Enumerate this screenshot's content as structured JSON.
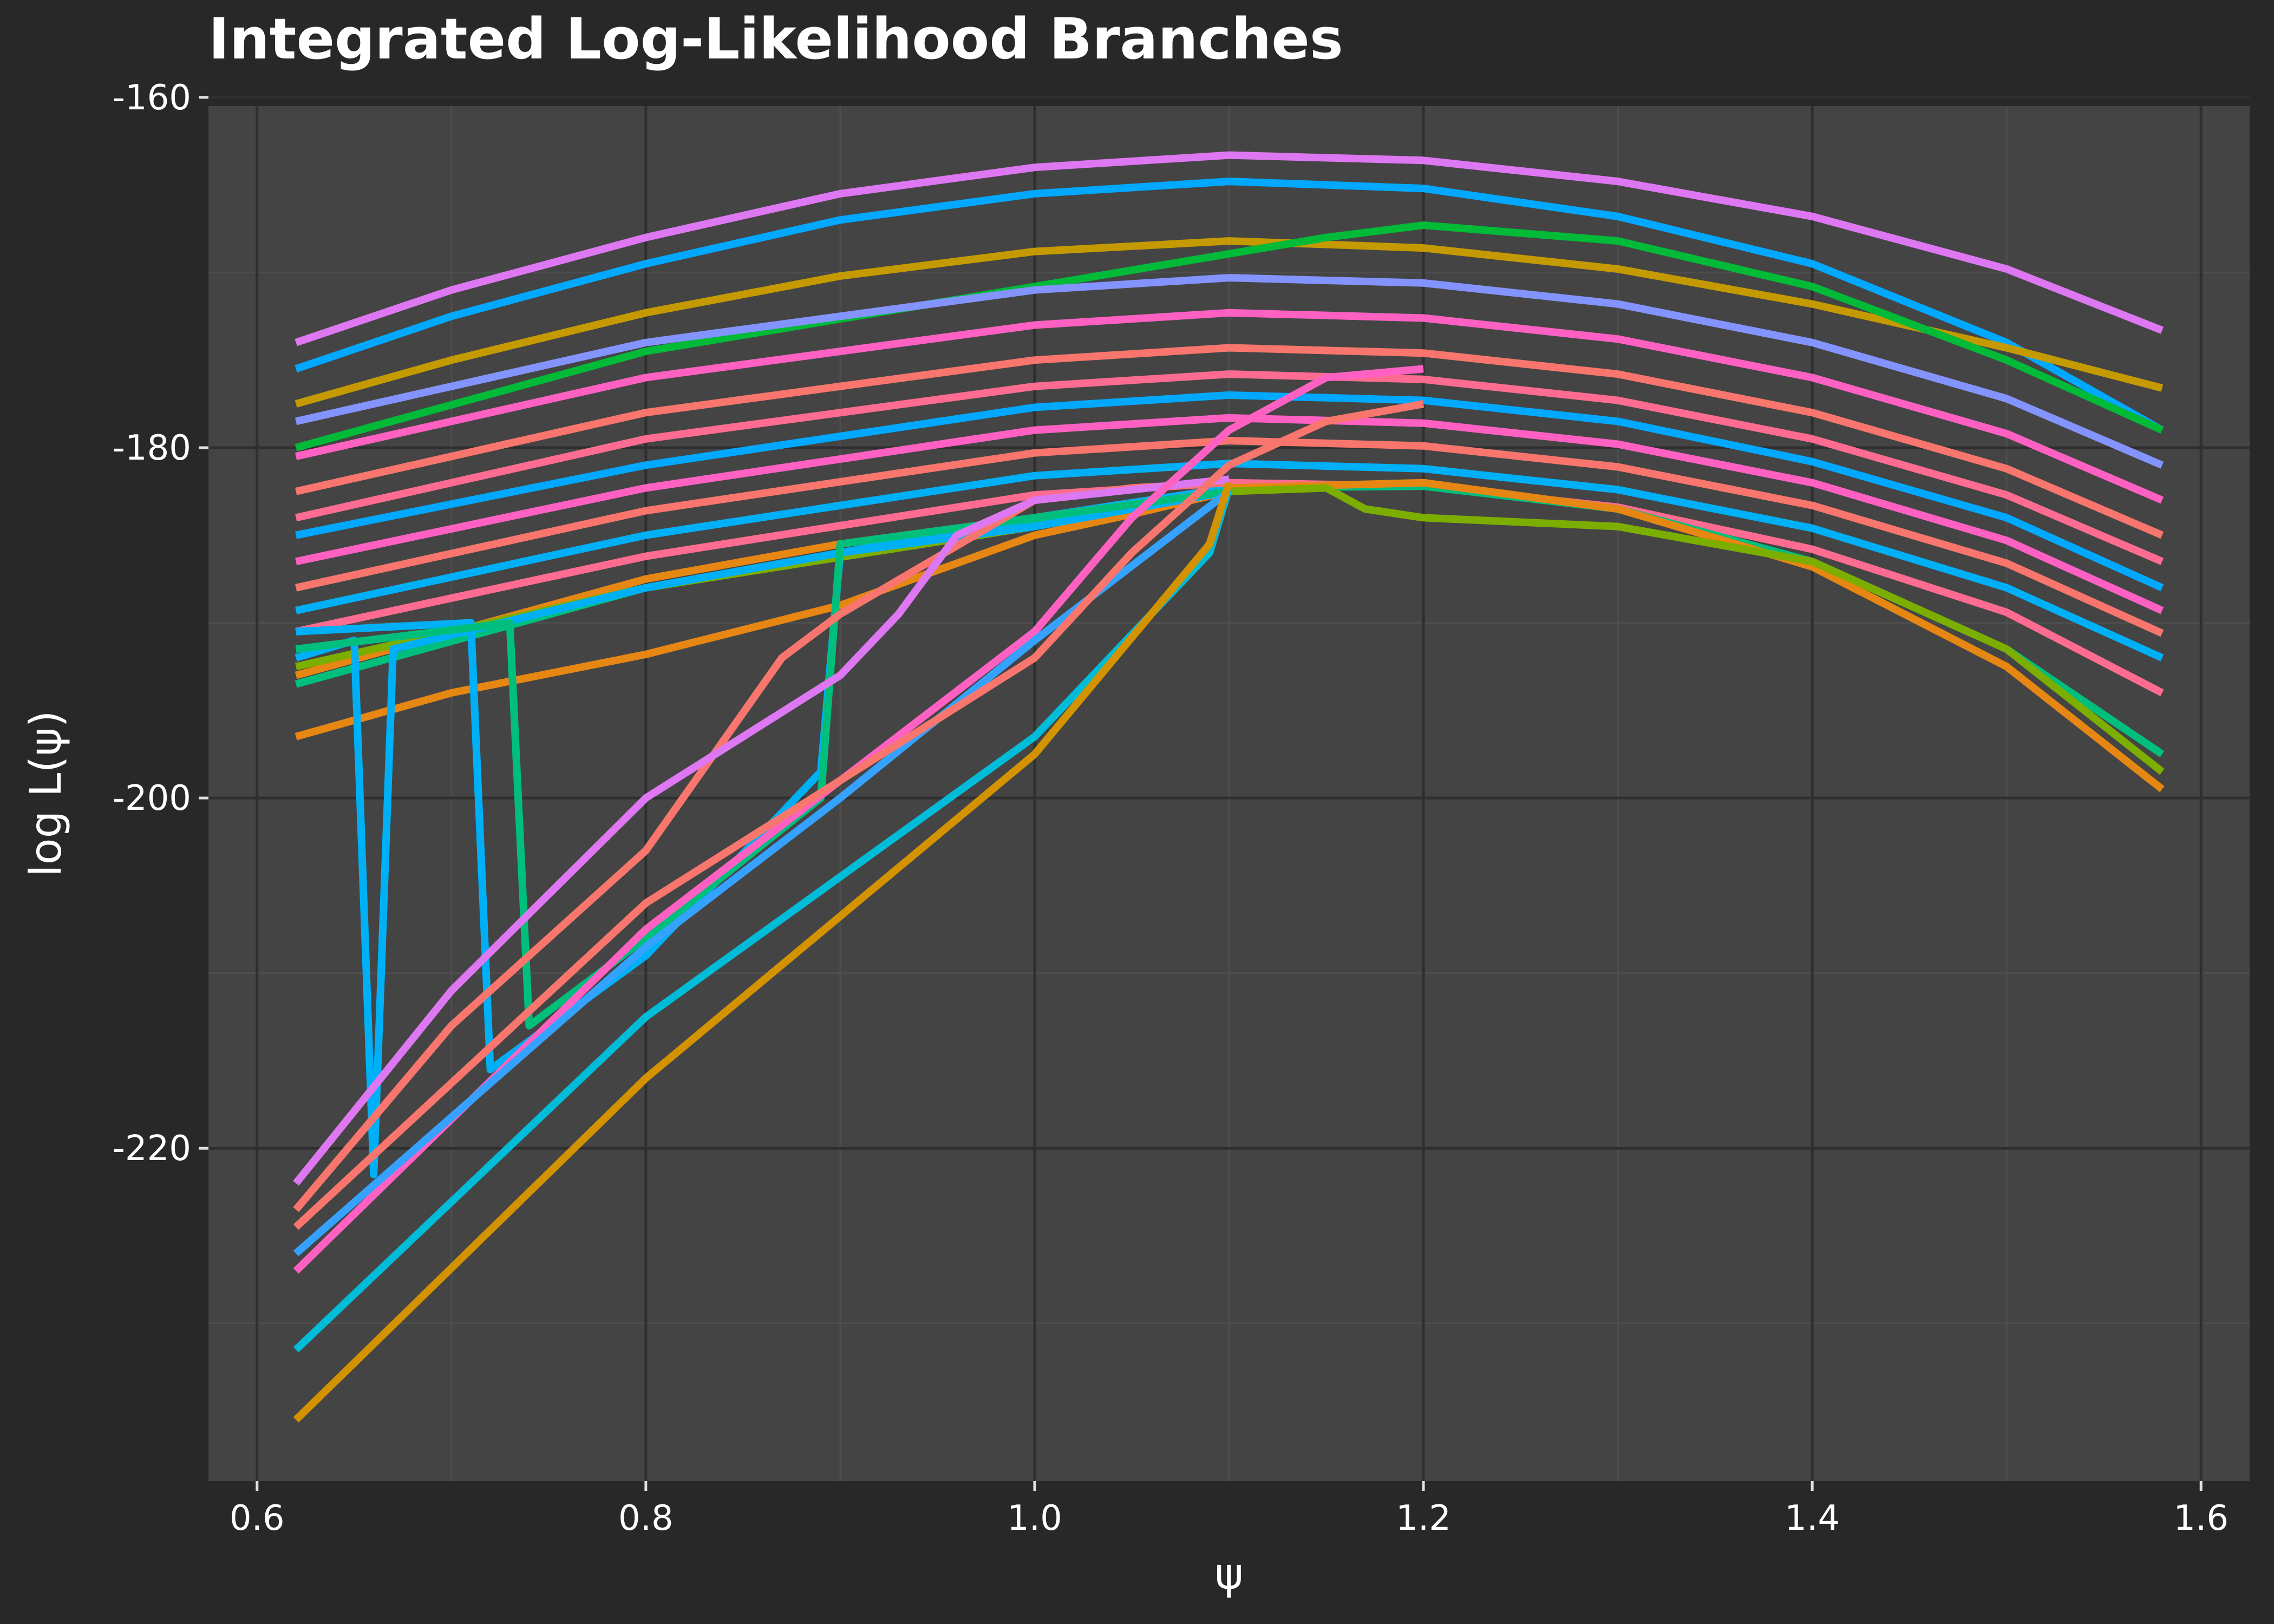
{
  "chart_data": {
    "type": "line",
    "title": "Integrated Log-Likelihood Branches",
    "xlabel": "ψ",
    "ylabel": "log L(ψ)",
    "xlim": [
      0.575,
      1.625
    ],
    "ylim": [
      -239,
      -160.5
    ],
    "x_ticks": [
      0.6,
      0.8,
      1.0,
      1.2,
      1.4,
      1.6
    ],
    "x_tick_labels": [
      "0.6",
      "0.8",
      "1.0",
      "1.2",
      "1.4",
      "1.6"
    ],
    "y_ticks": [
      -160,
      -180,
      -200,
      -220
    ],
    "y_tick_labels": [
      "-160",
      "-180",
      "-200",
      "-220"
    ],
    "grid": true,
    "legend": "none",
    "colors": {
      "background": "#282828",
      "panel": "#444444",
      "grid_major": "#2f2f2f",
      "grid_minor": "#4e4e4e",
      "text": "#ffffff"
    },
    "series": [
      {
        "color": "#DE77F2",
        "x": [
          0.62,
          0.7,
          0.8,
          0.9,
          1.0,
          1.1,
          1.2,
          1.3,
          1.4,
          1.5,
          1.58
        ],
        "y": [
          -174,
          -171,
          -168,
          -165.5,
          -164,
          -163.3,
          -163.6,
          -164.8,
          -166.8,
          -169.8,
          -173.3
        ]
      },
      {
        "color": "#00A9FF",
        "x": [
          0.62,
          0.7,
          0.8,
          0.9,
          1.0,
          1.1,
          1.2,
          1.3,
          1.4,
          1.5,
          1.58
        ],
        "y": [
          -175.5,
          -172.5,
          -169.5,
          -167,
          -165.5,
          -164.8,
          -165.2,
          -166.8,
          -169.5,
          -174,
          -179
        ]
      },
      {
        "color": "#C49A00",
        "x": [
          0.62,
          0.7,
          0.8,
          0.9,
          1.0,
          1.1,
          1.2,
          1.3,
          1.4,
          1.5,
          1.58
        ],
        "y": [
          -177.5,
          -175,
          -172.3,
          -170.2,
          -168.8,
          -168.2,
          -168.6,
          -169.8,
          -171.8,
          -174.3,
          -176.6
        ]
      },
      {
        "color": "#00BA38",
        "x": [
          0.62,
          0.8,
          1.0,
          1.15,
          1.2,
          1.3,
          1.4,
          1.5,
          1.58
        ],
        "y": [
          -180,
          -174.5,
          -170.8,
          -168,
          -167.3,
          -168.2,
          -170.8,
          -175,
          -179
        ]
      },
      {
        "color": "#8494FF",
        "x": [
          0.62,
          0.8,
          1.0,
          1.1,
          1.2,
          1.3,
          1.4,
          1.5,
          1.58
        ],
        "y": [
          -178.5,
          -174,
          -171,
          -170.3,
          -170.6,
          -171.8,
          -174,
          -177.2,
          -181
        ]
      },
      {
        "color": "#FF61C3",
        "x": [
          0.62,
          0.8,
          1.0,
          1.1,
          1.2,
          1.3,
          1.4,
          1.5,
          1.58
        ],
        "y": [
          -180.5,
          -176,
          -173,
          -172.3,
          -172.6,
          -173.8,
          -176,
          -179.2,
          -183
        ]
      },
      {
        "color": "#F8766D",
        "x": [
          0.62,
          0.8,
          1.0,
          1.1,
          1.2,
          1.3,
          1.4,
          1.5,
          1.58
        ],
        "y": [
          -182.5,
          -178,
          -175,
          -174.3,
          -174.6,
          -175.8,
          -178,
          -181.2,
          -185
        ]
      },
      {
        "color": "#FF6C91",
        "x": [
          0.62,
          0.8,
          1.0,
          1.1,
          1.2,
          1.3,
          1.4,
          1.5,
          1.58
        ],
        "y": [
          -184,
          -179.5,
          -176.5,
          -175.8,
          -176.1,
          -177.3,
          -179.5,
          -182.7,
          -186.5
        ]
      },
      {
        "color": "#00A9FF",
        "x": [
          0.62,
          0.8,
          1.0,
          1.1,
          1.2,
          1.3,
          1.4,
          1.5,
          1.58
        ],
        "y": [
          -185,
          -181,
          -177.7,
          -177,
          -177.3,
          -178.5,
          -180.8,
          -184,
          -188
        ]
      },
      {
        "color": "#FF61C3",
        "x": [
          0.62,
          0.8,
          1.0,
          1.1,
          1.2,
          1.3,
          1.4,
          1.5,
          1.58
        ],
        "y": [
          -186.5,
          -182.3,
          -179,
          -178.3,
          -178.6,
          -179.8,
          -182,
          -185.3,
          -189.3
        ]
      },
      {
        "color": "#F8766D",
        "x": [
          0.62,
          0.8,
          1.0,
          1.1,
          1.2,
          1.3,
          1.4,
          1.5,
          1.58
        ],
        "y": [
          -188,
          -183.6,
          -180.3,
          -179.6,
          -179.9,
          -181.1,
          -183.3,
          -186.6,
          -190.6
        ]
      },
      {
        "color": "#00B0F6",
        "x": [
          0.62,
          0.8,
          1.0,
          1.1,
          1.2,
          1.3,
          1.4,
          1.5,
          1.58
        ],
        "y": [
          -189.3,
          -185,
          -181.6,
          -180.9,
          -181.2,
          -182.4,
          -184.6,
          -188,
          -192
        ]
      },
      {
        "color": "#FF6C91",
        "x": [
          0.62,
          0.8,
          1.0,
          1.1,
          1.2,
          1.3,
          1.4,
          1.5,
          1.58
        ],
        "y": [
          -190.5,
          -186.2,
          -182.7,
          -182,
          -182.2,
          -183.4,
          -185.8,
          -189.4,
          -194
        ]
      },
      {
        "color": "#00BF7D",
        "x": [
          0.62,
          0.8,
          1.0,
          1.1,
          1.2,
          1.3,
          1.4,
          1.5,
          1.58
        ],
        "y": [
          -193.5,
          -188,
          -184.3,
          -182.3,
          -182.2,
          -183.5,
          -186.5,
          -191.5,
          -197.5
        ]
      },
      {
        "color": "#E68613",
        "x": [
          0.62,
          0.8,
          0.9,
          1.0,
          1.1,
          1.2,
          1.3,
          1.4,
          1.5,
          1.58
        ],
        "y": [
          -193,
          -187.5,
          -185.5,
          -184,
          -182.3,
          -182,
          -183.5,
          -186.8,
          -192.5,
          -199.5
        ]
      },
      {
        "color": "#7CAE00",
        "x": [
          0.62,
          0.8,
          1.0,
          1.1,
          1.15,
          1.17,
          1.2,
          1.3,
          1.4,
          1.5,
          1.58
        ],
        "y": [
          -192.5,
          -188,
          -184.5,
          -182.5,
          -182.3,
          -183.5,
          -184,
          -184.5,
          -186.5,
          -191.5,
          -198.5
        ]
      },
      {
        "color": "#E68613",
        "x": [
          0.62,
          0.7,
          0.8,
          0.9,
          1.0,
          1.05,
          1.1
        ],
        "y": [
          -196.5,
          -194,
          -191.8,
          -189,
          -185,
          -183.8,
          -182.5
        ]
      },
      {
        "color": "#00B0F6",
        "x": [
          0.62,
          0.65,
          0.66,
          0.67,
          0.8,
          1.0,
          1.1
        ],
        "y": [
          -192,
          -191,
          -221.5,
          -191.5,
          -188,
          -184,
          -182.3
        ]
      },
      {
        "color": "#00B0F6",
        "x": [
          0.62,
          0.71,
          0.72,
          0.8,
          0.89,
          0.9,
          1.0,
          1.1
        ],
        "y": [
          -190.5,
          -190,
          -215.5,
          -209,
          -198.5,
          -186,
          -184.5,
          -182.5
        ]
      },
      {
        "color": "#00BF7D",
        "x": [
          0.62,
          0.73,
          0.74,
          0.8,
          0.89,
          0.9,
          1.0,
          1.1
        ],
        "y": [
          -191.5,
          -190,
          -213,
          -208,
          -200,
          -185.5,
          -184,
          -182.5
        ]
      },
      {
        "color": "#F8766D",
        "x": [
          0.62,
          0.7,
          0.8,
          0.87,
          0.9,
          1.0,
          1.05,
          1.1
        ],
        "y": [
          -223.5,
          -213,
          -203,
          -192,
          -189.5,
          -183,
          -182.3,
          -182
        ]
      },
      {
        "color": "#DE77F2",
        "x": [
          0.62,
          0.7,
          0.8,
          0.9,
          0.93,
          0.96,
          1.0,
          1.1
        ],
        "y": [
          -222,
          -211,
          -200,
          -193,
          -189.5,
          -185,
          -183,
          -181.8
        ]
      },
      {
        "color": "#FF61C3",
        "x": [
          0.62,
          0.8,
          1.0,
          1.05,
          1.1,
          1.15,
          1.2
        ],
        "y": [
          -227,
          -207.5,
          -190.5,
          -184,
          -179,
          -176,
          -175.5
        ]
      },
      {
        "color": "#35A2FF",
        "x": [
          0.62,
          0.8,
          0.9,
          1.0,
          1.1
        ],
        "y": [
          -226,
          -208.5,
          -200,
          -191,
          -182.5
        ]
      },
      {
        "color": "#00BCD8",
        "x": [
          0.62,
          0.8,
          1.0,
          1.09,
          1.1
        ],
        "y": [
          -231.5,
          -212.5,
          -196.5,
          -186,
          -182.3
        ]
      },
      {
        "color": "#D39200",
        "x": [
          0.62,
          0.8,
          1.0,
          1.09,
          1.1
        ],
        "y": [
          -235.5,
          -216,
          -197.5,
          -185.5,
          -182
        ]
      },
      {
        "color": "#F8766D",
        "x": [
          0.62,
          0.8,
          1.0,
          1.05,
          1.1,
          1.15,
          1.2
        ],
        "y": [
          -224.5,
          -206,
          -192,
          -186,
          -181,
          -178.5,
          -177.5
        ]
      }
    ]
  }
}
